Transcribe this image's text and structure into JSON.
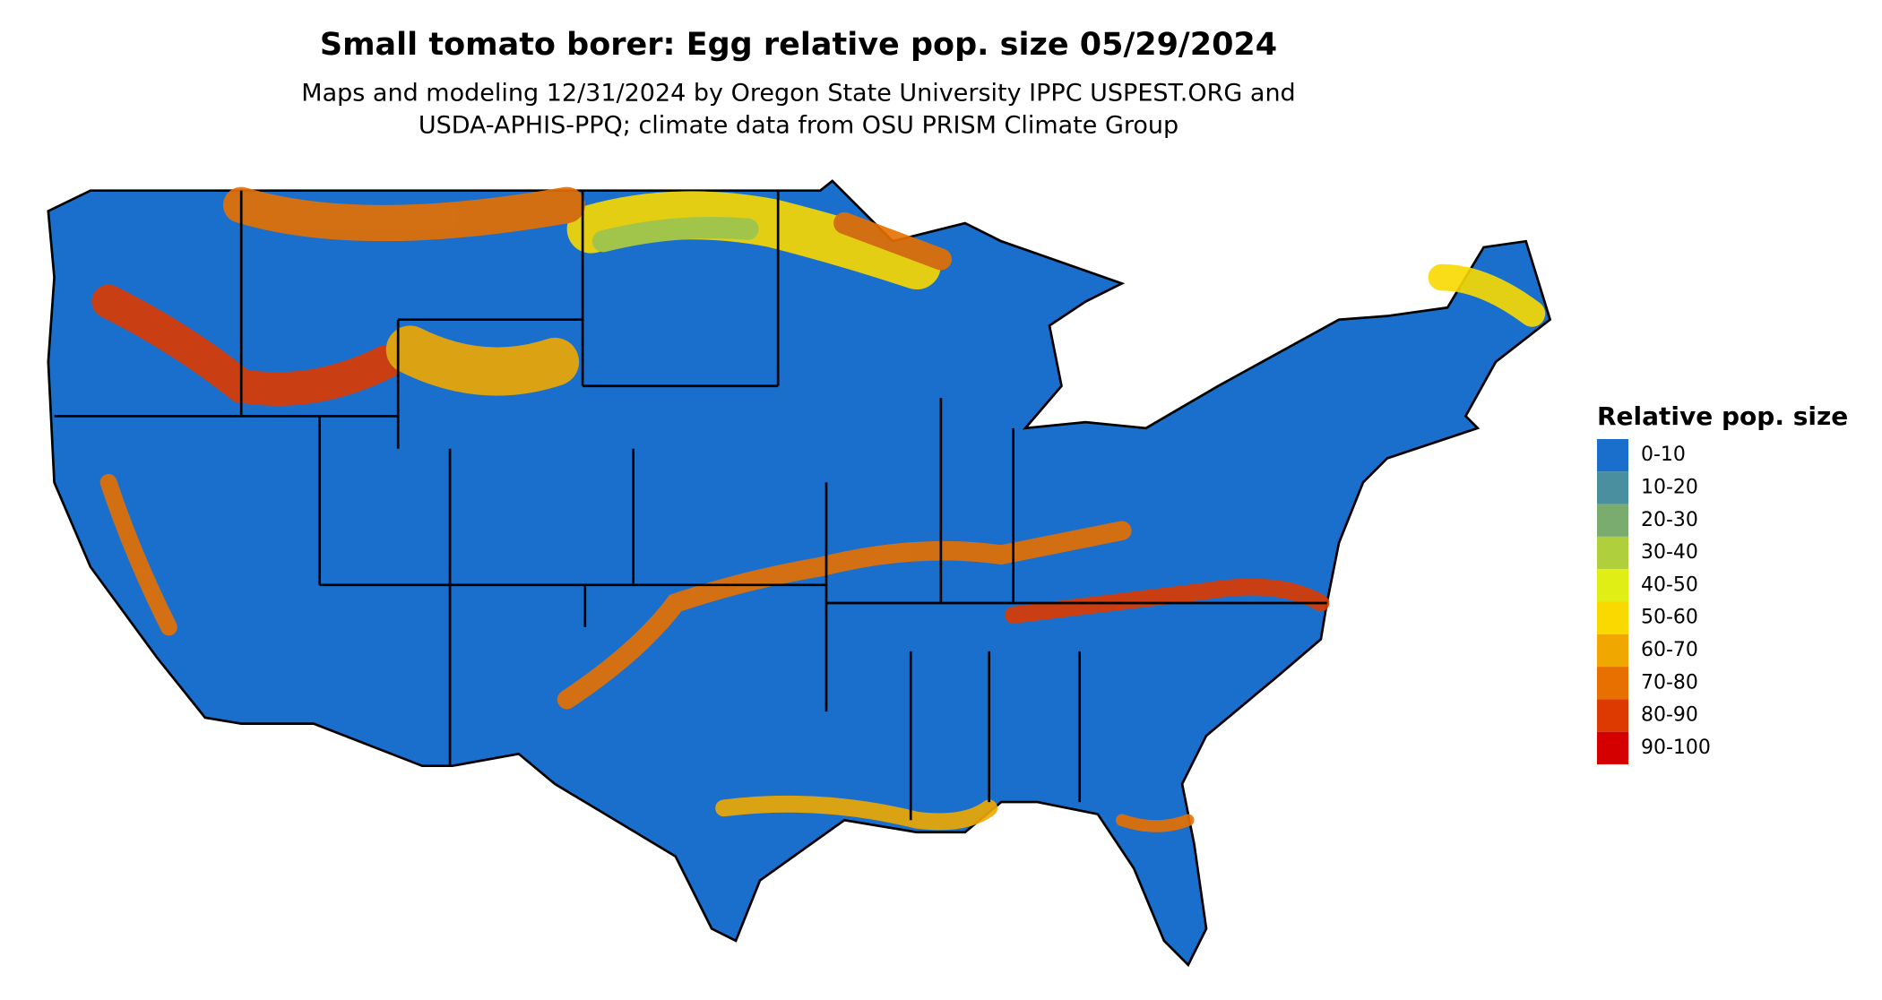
{
  "title": "Small tomato borer: Egg relative pop. size 05/29/2024",
  "subtitle": [
    "Maps and modeling 12/31/2024 by Oregon State University IPPC USPEST.ORG and",
    "USDA-APHIS-PPQ; climate data from OSU PRISM Climate Group"
  ],
  "legend": {
    "title": "Relative pop. size",
    "items": [
      {
        "label": "0-10",
        "color": "#1a6fcc"
      },
      {
        "label": "10-20",
        "color": "#4a8f9f"
      },
      {
        "label": "20-30",
        "color": "#7aab6f"
      },
      {
        "label": "30-40",
        "color": "#b0cf3c"
      },
      {
        "label": "40-50",
        "color": "#e0ee16"
      },
      {
        "label": "50-60",
        "color": "#f9d900"
      },
      {
        "label": "60-70",
        "color": "#f0a800"
      },
      {
        "label": "70-80",
        "color": "#e87000"
      },
      {
        "label": "80-90",
        "color": "#dc3a00"
      },
      {
        "label": "90-100",
        "color": "#d40000"
      }
    ]
  }
}
